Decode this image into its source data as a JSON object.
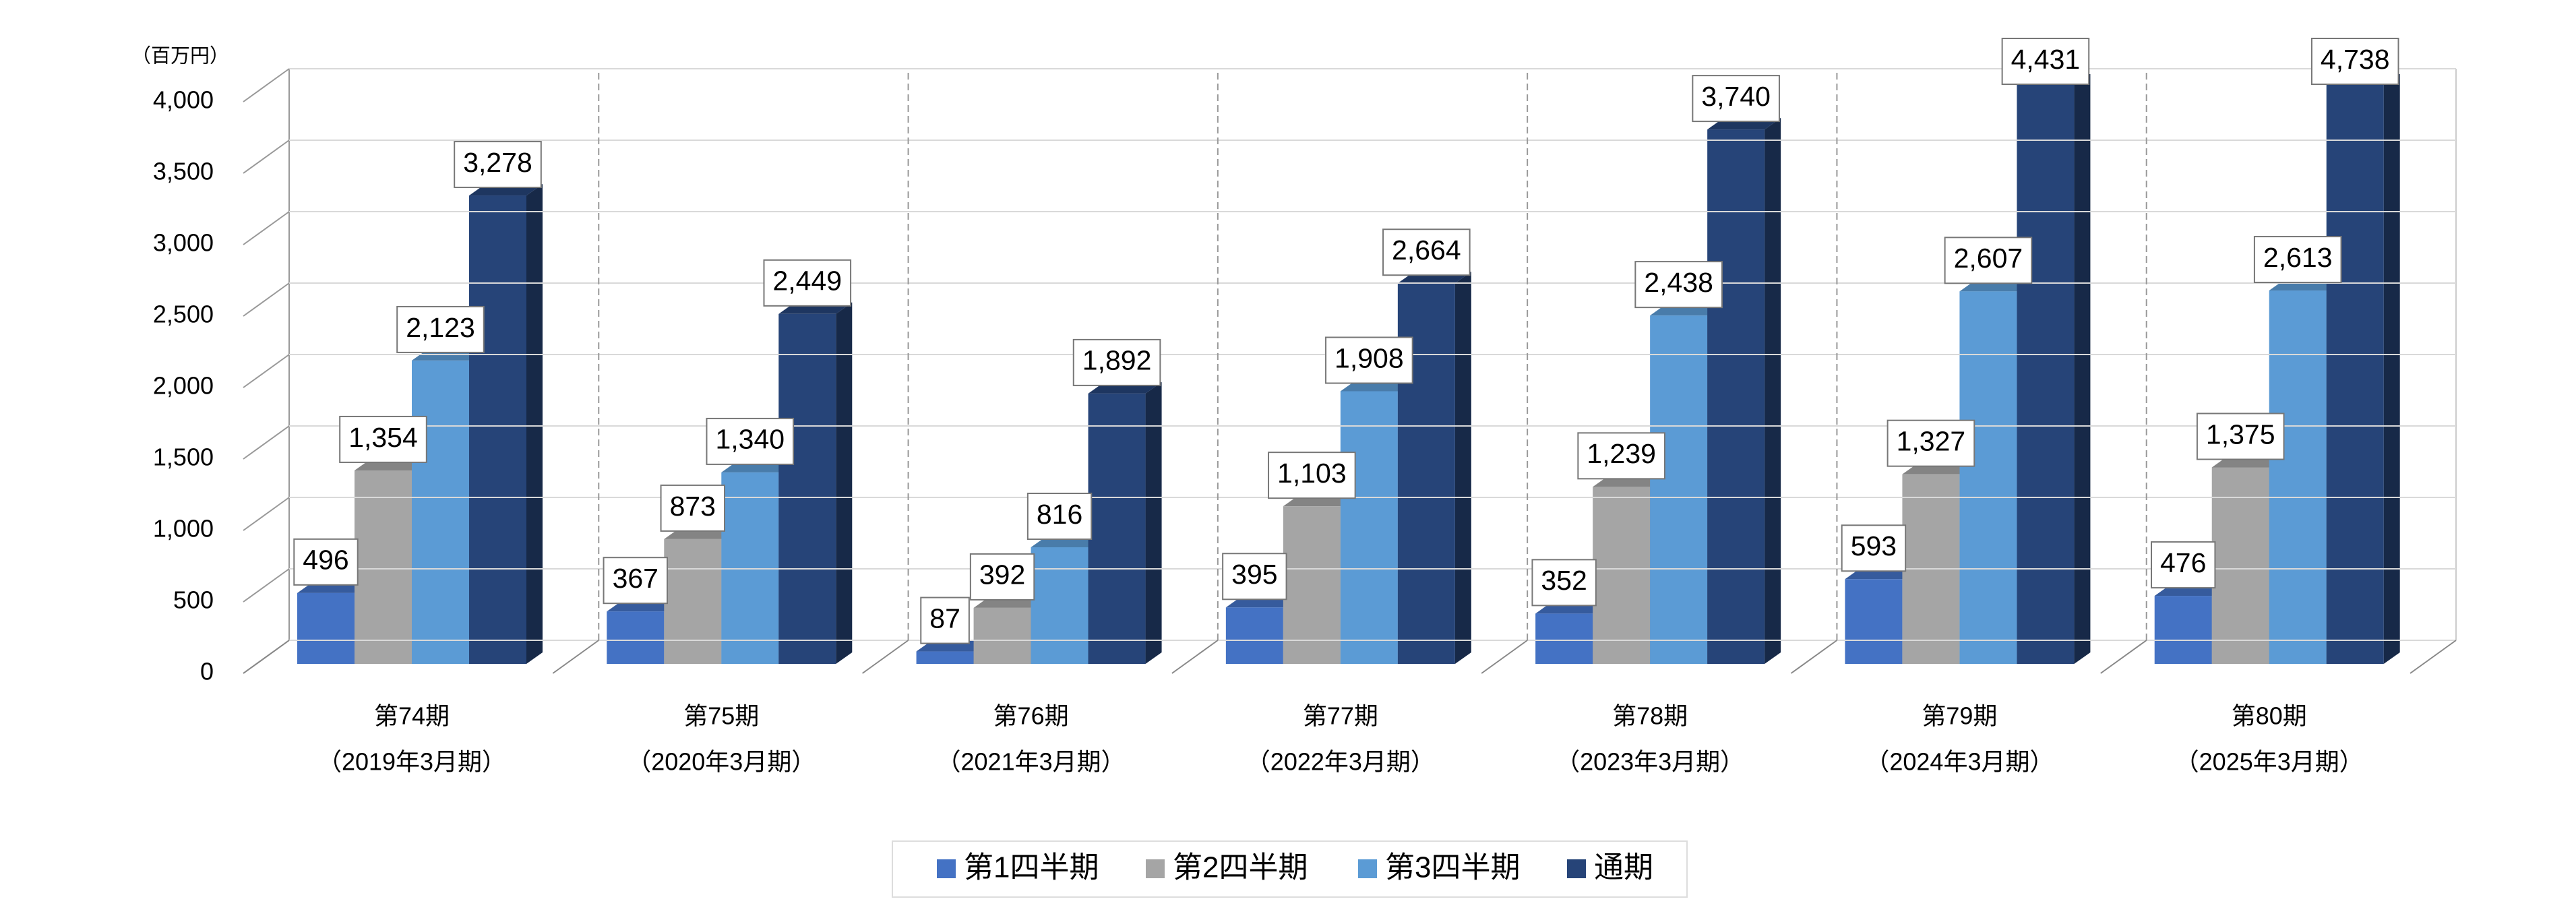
{
  "chart_data": {
    "type": "bar3d",
    "y_axis_label": "（百万円）",
    "categories": [
      [
        "第74期",
        "（2019年3月期）"
      ],
      [
        "第75期",
        "（2020年3月期）"
      ],
      [
        "第76期",
        "（2021年3月期）"
      ],
      [
        "第77期",
        "（2022年3月期）"
      ],
      [
        "第78期",
        "（2023年3月期）"
      ],
      [
        "第79期",
        "（2024年3月期）"
      ],
      [
        "第80期",
        "（2025年3月期）"
      ]
    ],
    "series": [
      {
        "name": "第1四半期",
        "color": "#4472c4",
        "values": [
          496,
          367,
          87,
          395,
          352,
          593,
          476
        ],
        "value_labels": [
          "496",
          "367",
          "87",
          "395",
          "352",
          "593",
          "476"
        ]
      },
      {
        "name": "第2四半期",
        "color": "#a5a5a5",
        "values": [
          1354,
          873,
          392,
          1103,
          1239,
          1327,
          1375
        ],
        "value_labels": [
          "1,354",
          "873",
          "392",
          "1,103",
          "1,239",
          "1,327",
          "1,375"
        ]
      },
      {
        "name": "第3四半期",
        "color": "#5b9bd5",
        "values": [
          2123,
          1340,
          816,
          1908,
          2438,
          2607,
          2613
        ],
        "value_labels": [
          "2,123",
          "1,340",
          "816",
          "1,908",
          "2,438",
          "2,607",
          "2,613"
        ]
      },
      {
        "name": "通期",
        "color": "#264478",
        "values": [
          3278,
          2449,
          1892,
          2664,
          3740,
          4431,
          4738
        ],
        "value_labels": [
          "3,278",
          "2,449",
          "1,892",
          "2,664",
          "3,740",
          "4,431",
          "4,738"
        ]
      }
    ],
    "ylim": [
      0,
      4000
    ],
    "yticks": [
      0,
      500,
      {
        "value": 1000,
        "label": "1,000"
      },
      {
        "value": 1500,
        "label": "1,500"
      },
      {
        "value": 2000,
        "label": "2,000"
      },
      {
        "value": 2500,
        "label": "2,500"
      },
      {
        "value": 3000,
        "label": "3,000"
      },
      {
        "value": 3500,
        "label": "3,500"
      },
      {
        "value": 4000,
        "label": "4,000"
      }
    ],
    "grid": true,
    "legend": "bottom"
  }
}
